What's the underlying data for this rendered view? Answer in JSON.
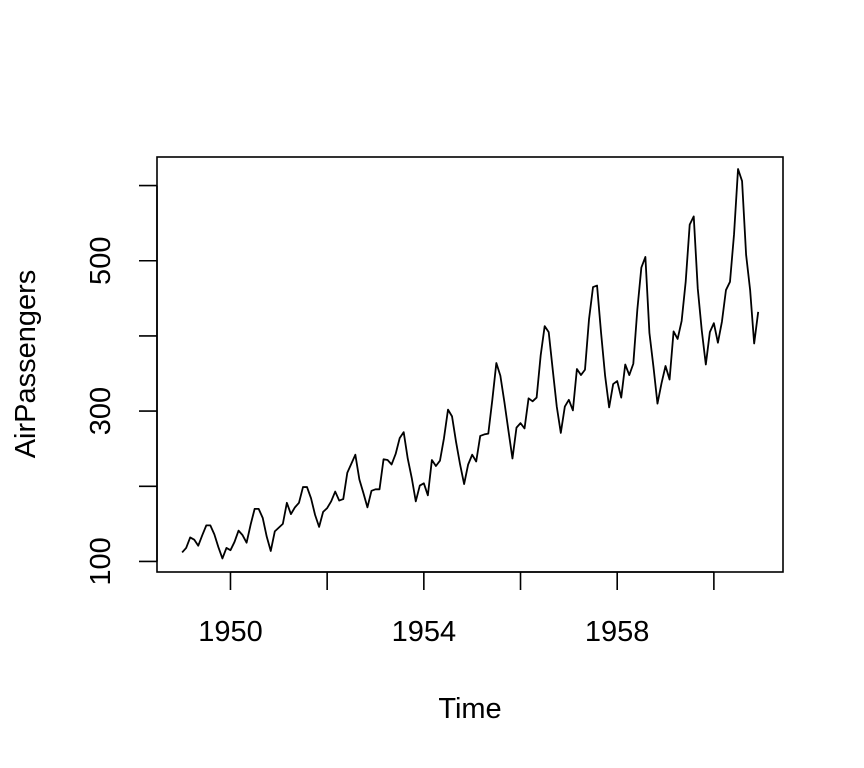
{
  "chart_data": {
    "type": "line",
    "xlabel": "Time",
    "ylabel": "AirPassengers",
    "xlim": [
      1948.48,
      1961.43
    ],
    "ylim": [
      86,
      638
    ],
    "x_ticks": [
      1950,
      1952,
      1954,
      1956,
      1958,
      1960
    ],
    "x_tick_labels": [
      "1950",
      "",
      "1954",
      "",
      "1958",
      ""
    ],
    "y_ticks": [
      100,
      200,
      300,
      400,
      500,
      600
    ],
    "y_tick_labels": [
      "100",
      "",
      "300",
      "",
      "500",
      ""
    ],
    "grid": false,
    "series": [
      {
        "x_start": 1949,
        "x_step": 0.0833333,
        "values": [
          112,
          118,
          132,
          129,
          121,
          135,
          148,
          148,
          136,
          119,
          104,
          118,
          115,
          126,
          141,
          135,
          125,
          149,
          170,
          170,
          158,
          133,
          114,
          140,
          145,
          150,
          178,
          163,
          172,
          178,
          199,
          199,
          184,
          162,
          146,
          166,
          171,
          180,
          193,
          181,
          183,
          218,
          230,
          242,
          209,
          191,
          172,
          194,
          196,
          196,
          236,
          235,
          229,
          243,
          264,
          272,
          237,
          211,
          180,
          201,
          204,
          188,
          235,
          227,
          234,
          264,
          302,
          293,
          259,
          229,
          203,
          229,
          242,
          233,
          267,
          269,
          270,
          315,
          364,
          347,
          312,
          274,
          237,
          278,
          284,
          277,
          317,
          313,
          318,
          374,
          413,
          405,
          355,
          306,
          271,
          306,
          315,
          301,
          356,
          348,
          355,
          422,
          465,
          467,
          404,
          347,
          305,
          336,
          340,
          318,
          362,
          348,
          363,
          435,
          491,
          505,
          404,
          359,
          310,
          337,
          360,
          342,
          406,
          396,
          420,
          472,
          548,
          559,
          463,
          407,
          362,
          405,
          417,
          391,
          419,
          461,
          472,
          535,
          622,
          606,
          508,
          461,
          390,
          432
        ]
      }
    ]
  }
}
